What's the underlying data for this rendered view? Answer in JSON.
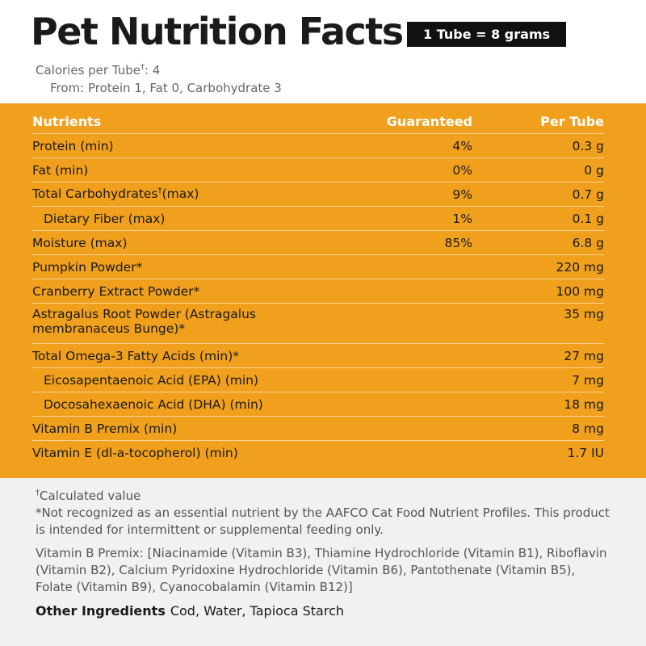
{
  "header": {
    "title": "Pet Nutrition Facts",
    "serving": "1 Tube = 8 grams",
    "calories": {
      "label": "Calories per Tube",
      "sup": "†",
      "value": ": 4"
    },
    "from": "From: Protein 1, Fat 0, Carbohydrate 3"
  },
  "table": {
    "columns": [
      "Nutrients",
      "Guaranteed",
      "Per Tube"
    ],
    "rows": [
      {
        "name": "Protein (min)",
        "guaranteed": "4%",
        "per_tube": "0.3 g"
      },
      {
        "name": "Fat (min)",
        "guaranteed": "0%",
        "per_tube": "0 g"
      },
      {
        "name": "Total Carbohydrates",
        "sup": "†",
        "after": "(max)",
        "guaranteed": "9%",
        "per_tube": "0.7 g",
        "sub": [
          {
            "name": "Dietary Fiber (max)",
            "guaranteed": "1%",
            "per_tube": "0.1 g"
          }
        ]
      },
      {
        "name": "Moisture (max)",
        "guaranteed": "85%",
        "per_tube": "6.8 g"
      },
      {
        "name": "Pumpkin Powder*",
        "per_tube": "220 mg"
      },
      {
        "name": "Cranberry Extract Powder*",
        "per_tube": "100 mg"
      },
      {
        "name": "Astragalus Root Powder (Astragalus membranaceus Bunge)*",
        "per_tube": "35 mg"
      },
      {
        "name": "Total Omega-3 Fatty Acids (min)*",
        "per_tube": "27 mg",
        "sub": [
          {
            "name": "Eicosapentaenoic Acid (EPA) (min)",
            "per_tube": "7 mg"
          },
          {
            "name": "Docosahexaenoic Acid (DHA) (min)",
            "per_tube": "18 mg"
          }
        ]
      },
      {
        "name": "Vitamin B Premix (min)",
        "per_tube": "8 mg"
      },
      {
        "name": "Vitamin E (dl-a-tocopherol) (min)",
        "per_tube": "1.7 IU"
      }
    ]
  },
  "footnotes": {
    "calculated": {
      "sup": "†",
      "text": "Calculated value"
    },
    "aafco": "*Not recognized as an essential nutrient by the AAFCO Cat Food Nutrient Profiles. This product is intended for intermittent or supplemental feeding only.",
    "premix": "Vitamin B Premix: [Niacinamide (Vitamin B3), Thiamine Hydrochloride (Vitamin B1), Riboflavin (Vitamin B2), Calcium Pyridoxine Hydrochloride (Vitamin B6), Pantothenate (Vitamin B5), Folate (Vitamin B9), Cyanocobalamin (Vitamin B12)]",
    "other_label": "Other Ingredients",
    "other": "Cod, Water, Tapioca Starch"
  }
}
